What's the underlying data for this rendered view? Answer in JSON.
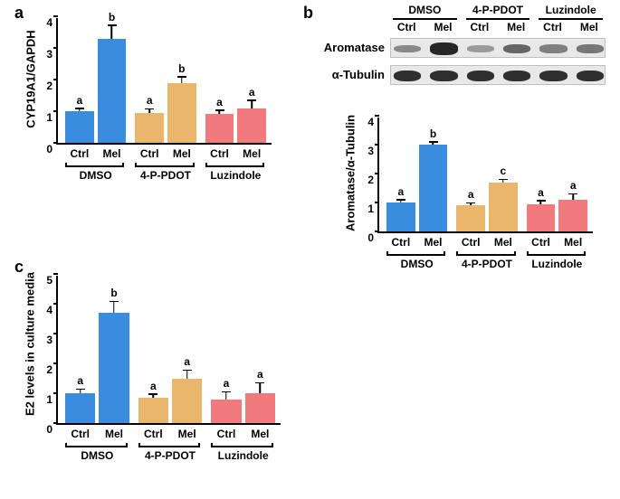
{
  "panel_a": {
    "label": "a",
    "chart": {
      "type": "bar",
      "y_title": "CYP19A1/GAPDH",
      "ylim": [
        0,
        4
      ],
      "ytick_step": 1,
      "groups": [
        "DMSO",
        "4-P-PDOT",
        "Luzindole"
      ],
      "sub_labels": [
        "Ctrl",
        "Mel",
        "Ctrl",
        "Mel",
        "Ctrl",
        "Mel"
      ],
      "values": [
        1.0,
        3.3,
        0.95,
        1.9,
        0.92,
        1.1
      ],
      "errors": [
        0.1,
        0.42,
        0.13,
        0.2,
        0.12,
        0.25
      ],
      "sig": [
        "a",
        "b",
        "a",
        "b",
        "a",
        "a"
      ],
      "colors": [
        "#3a8cde",
        "#3a8cde",
        "#e9b76c",
        "#e9b76c",
        "#f07a7e",
        "#f07a7e"
      ],
      "bg": "#ffffff",
      "axis_color": "#000000"
    }
  },
  "panel_b": {
    "label": "b",
    "blot": {
      "groups": [
        "DMSO",
        "4-P-PDOT",
        "Luzindole"
      ],
      "sub_labels": [
        "Ctrl",
        "Mel",
        "Ctrl",
        "Mel",
        "Ctrl",
        "Mel"
      ],
      "rows": [
        "Aromatase",
        "α-Tubulin"
      ],
      "intensity_aromatase": [
        0.35,
        0.9,
        0.25,
        0.55,
        0.4,
        0.45
      ],
      "intensity_tubulin": [
        0.85,
        0.85,
        0.85,
        0.85,
        0.85,
        0.85
      ]
    },
    "chart": {
      "type": "bar",
      "y_title": "Aromatase/α-Tubulin",
      "ylim": [
        0,
        4
      ],
      "ytick_step": 1,
      "groups": [
        "DMSO",
        "4-P-PDOT",
        "Luzindole"
      ],
      "sub_labels": [
        "Ctrl",
        "Mel",
        "Ctrl",
        "Mel",
        "Ctrl",
        "Mel"
      ],
      "values": [
        1.0,
        3.0,
        0.9,
        1.7,
        0.95,
        1.1
      ],
      "errors": [
        0.1,
        0.1,
        0.1,
        0.1,
        0.12,
        0.2
      ],
      "sig": [
        "a",
        "b",
        "a",
        "c",
        "a",
        "a"
      ],
      "colors": [
        "#3a8cde",
        "#3a8cde",
        "#e9b76c",
        "#e9b76c",
        "#f07a7e",
        "#f07a7e"
      ]
    }
  },
  "panel_c": {
    "label": "c",
    "chart": {
      "type": "bar",
      "y_title": "E2 levels in culture media",
      "ylim": [
        0,
        5
      ],
      "ytick_step": 1,
      "groups": [
        "DMSO",
        "4-P-PDOT",
        "Luzindole"
      ],
      "sub_labels": [
        "Ctrl",
        "Mel",
        "Ctrl",
        "Mel",
        "Ctrl",
        "Mel"
      ],
      "values": [
        1.0,
        3.7,
        0.85,
        1.48,
        0.8,
        1.0
      ],
      "errors": [
        0.15,
        0.38,
        0.13,
        0.3,
        0.25,
        0.35
      ],
      "sig": [
        "a",
        "b",
        "a",
        "a",
        "a",
        "a"
      ],
      "colors": [
        "#3a8cde",
        "#3a8cde",
        "#e9b76c",
        "#e9b76c",
        "#f07a7e",
        "#f07a7e"
      ]
    }
  }
}
